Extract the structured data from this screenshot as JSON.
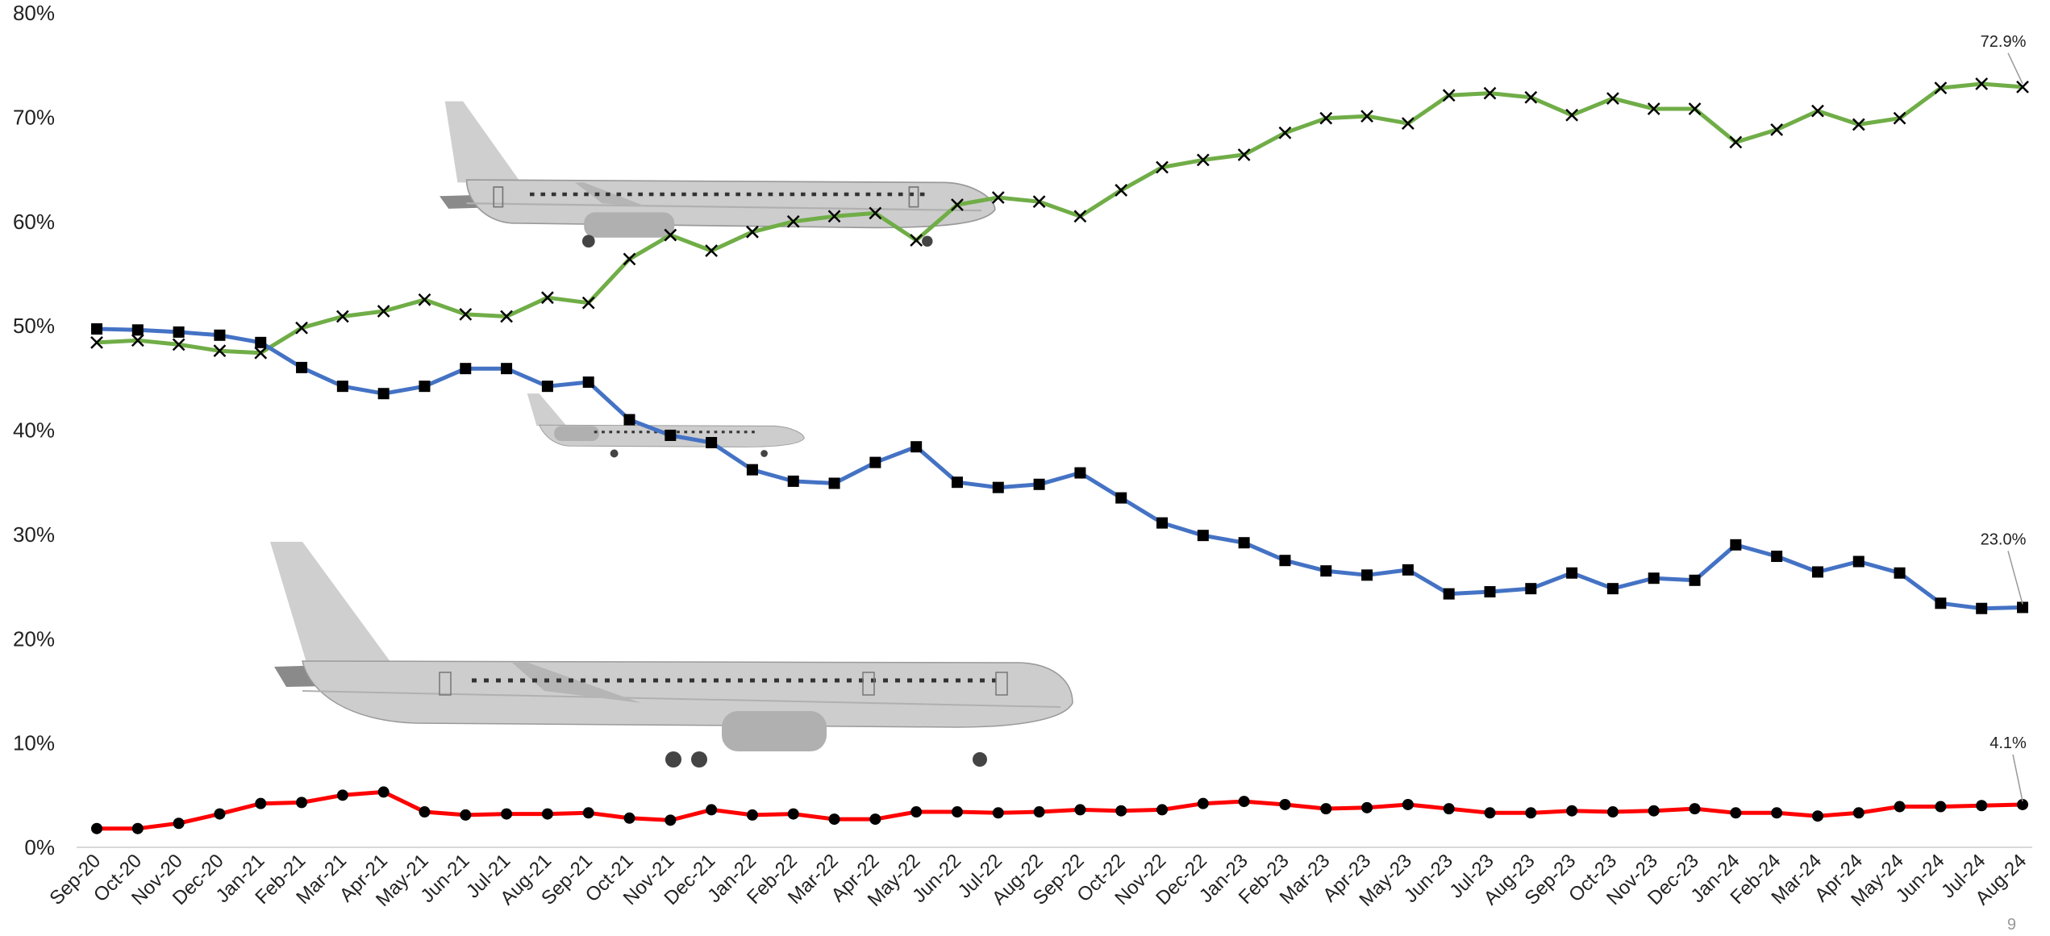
{
  "chart_data": {
    "type": "line",
    "title": "",
    "xlabel": "",
    "ylabel": "",
    "ylim": [
      0,
      80
    ],
    "y_ticks": [
      "0%",
      "10%",
      "20%",
      "30%",
      "40%",
      "50%",
      "60%",
      "70%",
      "80%"
    ],
    "grid": false,
    "legend": "none",
    "categories": [
      "Sep-20",
      "Oct-20",
      "Nov-20",
      "Dec-20",
      "Jan-21",
      "Feb-21",
      "Mar-21",
      "Apr-21",
      "May-21",
      "Jun-21",
      "Jul-21",
      "Aug-21",
      "Sep-21",
      "Oct-21",
      "Nov-21",
      "Dec-21",
      "Jan-22",
      "Feb-22",
      "Mar-22",
      "Apr-22",
      "May-22",
      "Jun-22",
      "Jul-22",
      "Aug-22",
      "Sep-22",
      "Oct-22",
      "Nov-22",
      "Dec-22",
      "Jan-23",
      "Feb-23",
      "Mar-23",
      "Apr-23",
      "May-23",
      "Jun-23",
      "Jul-23",
      "Aug-23",
      "Sep-23",
      "Oct-23",
      "Nov-23",
      "Dec-23",
      "Jan-24",
      "Feb-24",
      "Mar-24",
      "Apr-24",
      "May-24",
      "Jun-24",
      "Jul-24",
      "Aug-24"
    ],
    "series": [
      {
        "color": "#70ad47",
        "marker": "x",
        "icon": "narrowbody-jet",
        "end_label": "72.9%",
        "values": [
          48.4,
          48.6,
          48.2,
          47.6,
          47.4,
          49.8,
          50.9,
          51.4,
          52.5,
          51.1,
          50.9,
          52.7,
          52.2,
          56.4,
          58.7,
          57.2,
          59.0,
          60.0,
          60.5,
          60.8,
          58.2,
          61.6,
          62.3,
          61.9,
          60.5,
          63.0,
          65.2,
          65.9,
          66.4,
          68.5,
          69.9,
          70.1,
          69.4,
          72.1,
          72.3,
          71.9,
          70.2,
          71.8,
          70.8,
          70.8,
          67.6,
          68.8,
          70.6,
          69.3,
          69.9,
          72.8,
          73.2,
          72.9
        ]
      },
      {
        "color": "#4472c4",
        "marker": "square",
        "icon": "regional-jet",
        "end_label": "23.0%",
        "values": [
          49.7,
          49.6,
          49.4,
          49.1,
          48.4,
          46.0,
          44.2,
          43.5,
          44.2,
          45.9,
          45.9,
          44.2,
          44.6,
          41.0,
          39.5,
          38.8,
          36.2,
          35.1,
          34.9,
          36.9,
          38.4,
          35.0,
          34.5,
          34.8,
          35.9,
          33.5,
          31.1,
          29.9,
          29.2,
          27.5,
          26.5,
          26.1,
          26.6,
          24.3,
          24.5,
          24.8,
          26.3,
          24.8,
          25.8,
          25.6,
          29.0,
          27.9,
          26.4,
          27.4,
          26.3,
          23.4,
          22.9,
          23.0
        ]
      },
      {
        "color": "#ff0000",
        "marker": "circle",
        "icon": "widebody-jet",
        "end_label": "4.1%",
        "values": [
          1.8,
          1.8,
          2.3,
          3.2,
          4.2,
          4.3,
          5.0,
          5.3,
          3.4,
          3.1,
          3.2,
          3.2,
          3.3,
          2.8,
          2.6,
          3.6,
          3.1,
          3.2,
          2.7,
          2.7,
          3.4,
          3.4,
          3.3,
          3.4,
          3.6,
          3.5,
          3.6,
          4.2,
          4.4,
          4.1,
          3.7,
          3.8,
          4.1,
          3.7,
          3.3,
          3.3,
          3.5,
          3.4,
          3.5,
          3.7,
          3.3,
          3.3,
          3.0,
          3.3,
          3.9,
          3.9,
          4.0,
          4.1
        ]
      }
    ]
  },
  "page_number": "9"
}
